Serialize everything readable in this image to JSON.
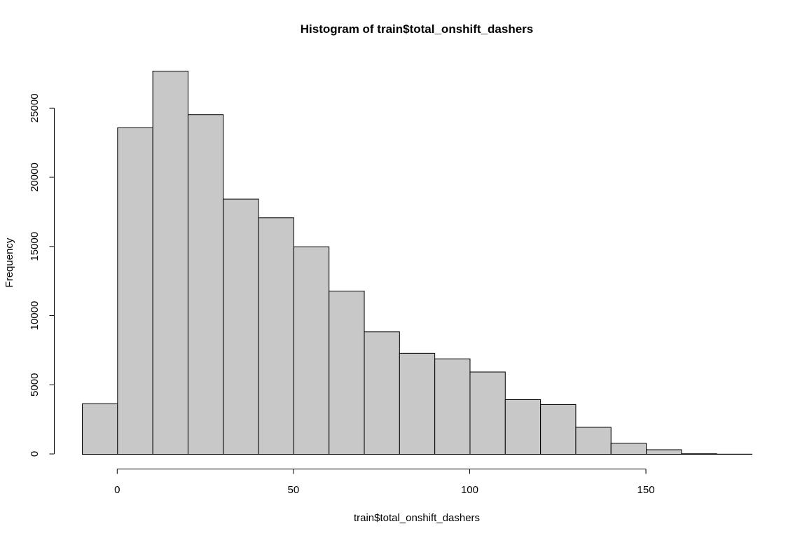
{
  "chart_data": {
    "type": "bar",
    "title": "Histogram of train$total_onshift_dashers",
    "xlabel": "train$total_onshift_dashers",
    "ylabel": "Frequency",
    "bin_edges": [
      -10,
      0,
      10,
      20,
      30,
      40,
      50,
      60,
      70,
      80,
      90,
      100,
      110,
      120,
      130,
      140,
      150,
      160,
      170,
      180
    ],
    "values": [
      3650,
      23600,
      27700,
      24550,
      18450,
      17100,
      15000,
      11800,
      8850,
      7300,
      6900,
      5950,
      3950,
      3600,
      1950,
      800,
      330,
      40,
      10
    ],
    "xlim": [
      -10,
      180
    ],
    "ylim": [
      0,
      27700
    ],
    "x_ticks": [
      0,
      50,
      100,
      150
    ],
    "x_tick_labels": [
      "0",
      "50",
      "100",
      "150"
    ],
    "y_ticks": [
      0,
      5000,
      10000,
      15000,
      20000,
      25000
    ],
    "y_tick_labels": [
      "0",
      "5000",
      "10000",
      "15000",
      "20000",
      "25000"
    ],
    "bar_color": "#c8c8c8",
    "grid": false
  }
}
